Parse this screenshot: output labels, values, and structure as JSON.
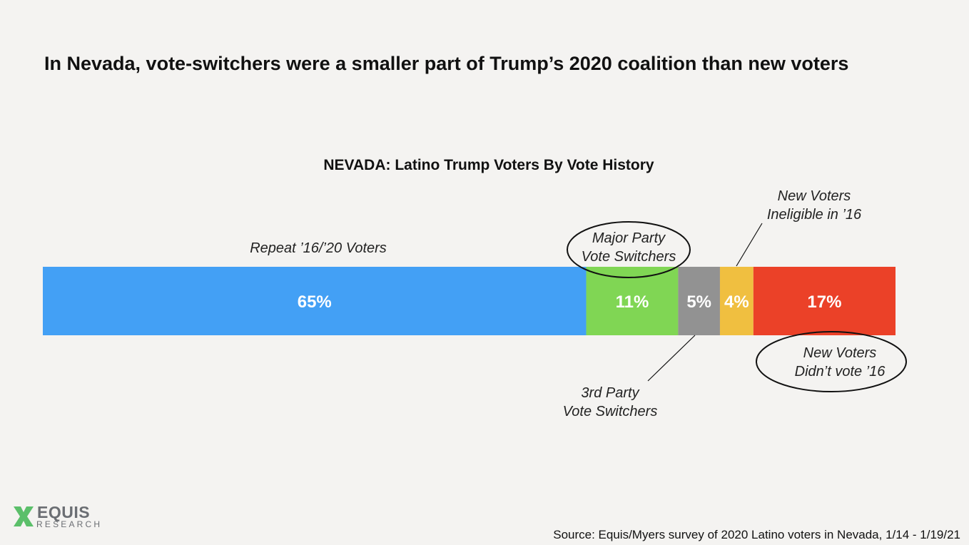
{
  "headline": "In Nevada, vote-switchers were a smaller part of Trump’s 2020 coalition than new voters",
  "source": "Source: Equis/Myers survey of 2020 Latino voters in Nevada, 1/14 - 1/19/21",
  "logo": {
    "word": "EQUIS",
    "sub": "RESEARCH",
    "colors": {
      "word": "#6b6e73",
      "mark": "#5bbf6a",
      "sub": "#6b6e73"
    }
  },
  "chart_data": {
    "type": "bar",
    "orientation": "horizontal-stacked",
    "title": "NEVADA: Latino Trump Voters By Vote History",
    "xlabel": "",
    "ylabel": "",
    "xlim": [
      0,
      102
    ],
    "series": [
      {
        "name": "Repeat ’16/’20 Voters",
        "value": 65,
        "label": "65%",
        "color": "#43a0f5"
      },
      {
        "name": "Major Party Vote Switchers",
        "value": 11,
        "label": "11%",
        "color": "#80d654"
      },
      {
        "name": "3rd Party Vote Switchers",
        "value": 5,
        "label": "5%",
        "color": "#929292"
      },
      {
        "name": "New Voters Ineligible in ’16",
        "value": 4,
        "label": "4%",
        "color": "#f0bf40"
      },
      {
        "name": "New Voters Didn’t vote ’16",
        "value": 17,
        "label": "17%",
        "color": "#eb4128"
      }
    ],
    "annotations": [
      {
        "series": 0,
        "lines": [
          "Repeat ’16/’20 Voters"
        ],
        "position": "above",
        "circled": false
      },
      {
        "series": 1,
        "lines": [
          "Major Party",
          "Vote Switchers"
        ],
        "position": "above",
        "circled": true
      },
      {
        "series": 2,
        "lines": [
          "3rd Party",
          "Vote Switchers"
        ],
        "position": "below",
        "circled": false,
        "leader": true
      },
      {
        "series": 3,
        "lines": [
          "New Voters",
          "Ineligible in ’16"
        ],
        "position": "above",
        "circled": false,
        "leader": true
      },
      {
        "series": 4,
        "lines": [
          "New Voters",
          "Didn’t vote ’16"
        ],
        "position": "below",
        "circled": true
      }
    ]
  }
}
